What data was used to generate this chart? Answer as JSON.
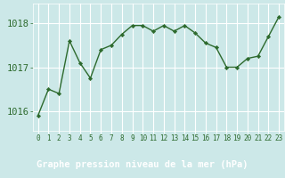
{
  "x": [
    0,
    1,
    2,
    3,
    4,
    5,
    6,
    7,
    8,
    9,
    10,
    11,
    12,
    13,
    14,
    15,
    16,
    17,
    18,
    19,
    20,
    21,
    22,
    23
  ],
  "y": [
    1015.9,
    1016.5,
    1016.4,
    1017.6,
    1017.1,
    1016.75,
    1017.4,
    1017.5,
    1017.75,
    1017.95,
    1017.95,
    1017.82,
    1017.95,
    1017.82,
    1017.95,
    1017.78,
    1017.55,
    1017.45,
    1017.0,
    1017.0,
    1017.2,
    1017.25,
    1017.7,
    1018.15
  ],
  "line_color": "#2d6a2d",
  "marker_color": "#2d6a2d",
  "bg_color": "#cce8e8",
  "grid_color": "#ffffff",
  "bottom_bar_color": "#336633",
  "bottom_label_color": "#ffffff",
  "xlabel": "Graphe pression niveau de la mer (hPa)",
  "yticks": [
    1016,
    1017,
    1018
  ],
  "ylim": [
    1015.55,
    1018.45
  ],
  "xlim": [
    -0.5,
    23.5
  ],
  "label_fontsize": 7.5,
  "xtick_fontsize": 5.5
}
